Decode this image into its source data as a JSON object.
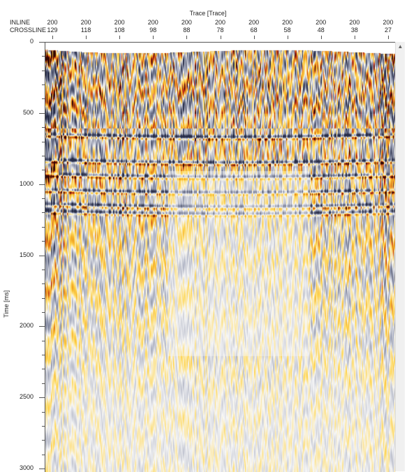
{
  "header": {
    "axis_title": "Trace [Trace]",
    "inline_label": "INLINE",
    "crossline_label": "CROSSLINE"
  },
  "chart_data": {
    "type": "heatmap",
    "title": "",
    "xlabel": "Trace [Trace]",
    "ylabel": "Time [ms]",
    "header_rows": [
      "INLINE",
      "CROSSLINE"
    ],
    "inline_values": [
      "200",
      "200",
      "200",
      "200",
      "200",
      "200",
      "200",
      "200",
      "200",
      "200",
      "200"
    ],
    "crossline_values": [
      "129",
      "118",
      "108",
      "98",
      "88",
      "78",
      "68",
      "58",
      "48",
      "38",
      "27"
    ],
    "crossline_range": [
      129,
      27
    ],
    "y_ticks": [
      "0",
      "500",
      "1000",
      "1500",
      "2000",
      "2500",
      "3000"
    ],
    "y_tick_values": [
      0,
      500,
      1000,
      1500,
      2000,
      2500,
      3000
    ],
    "ylim": [
      0,
      3000
    ],
    "colormap": [
      "#2c3350",
      "#9aa0b4",
      "#f7f7f7",
      "#ffd24a",
      "#f0a020",
      "#c0281a",
      "#3a0a05"
    ],
    "reflector_times_ms": [
      640,
      820,
      920,
      1030,
      1130,
      1180
    ]
  },
  "scrollbar": {
    "up_arrow": "▲"
  }
}
